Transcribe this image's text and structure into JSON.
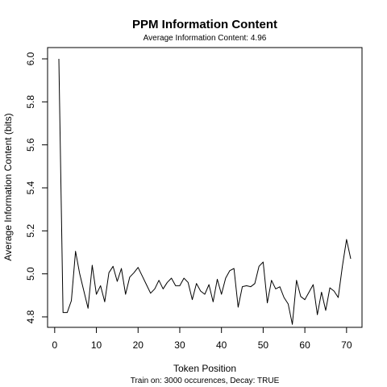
{
  "chart_data": {
    "type": "line",
    "title": "PPM Information Content",
    "subtitle": "Average Information Content: 4.96",
    "xlabel": "Token Position",
    "ylabel": "Average Information Content (bits)",
    "footnote": "Train on: 3000 occurences, Decay: TRUE",
    "xlim": [
      1,
      71
    ],
    "ylim": [
      4.77,
      6.0
    ],
    "x_ticks": [
      0,
      10,
      20,
      30,
      40,
      50,
      60,
      70
    ],
    "y_ticks": [
      4.8,
      5.0,
      5.2,
      5.4,
      5.6,
      5.8,
      6.0
    ],
    "x_tick_labels": [
      "0",
      "10",
      "20",
      "30",
      "40",
      "50",
      "60",
      "70"
    ],
    "y_tick_labels": [
      "4.8",
      "5.0",
      "5.2",
      "5.4",
      "5.6",
      "5.8",
      "6.0"
    ],
    "grid": false,
    "legend": "none",
    "line_color": "#000000",
    "series": [
      {
        "values": [
          6.0,
          4.82,
          4.82,
          4.875,
          5.105,
          5.0,
          4.92,
          4.84,
          5.04,
          4.905,
          4.945,
          4.87,
          5.005,
          5.035,
          4.965,
          5.025,
          4.905,
          4.985,
          5.005,
          5.03,
          4.99,
          4.95,
          4.91,
          4.93,
          4.97,
          4.93,
          4.96,
          4.98,
          4.945,
          4.945,
          4.98,
          4.96,
          4.88,
          4.955,
          4.92,
          4.905,
          4.95,
          4.87,
          4.975,
          4.905,
          4.98,
          5.015,
          5.025,
          4.845,
          4.94,
          4.945,
          4.94,
          4.955,
          5.035,
          5.055,
          4.865,
          4.97,
          4.93,
          4.94,
          4.89,
          4.86,
          4.765,
          4.97,
          4.895,
          4.88,
          4.915,
          4.95,
          4.81,
          4.915,
          4.83,
          4.935,
          4.92,
          4.89,
          5.035,
          5.16,
          5.07
        ]
      }
    ]
  }
}
